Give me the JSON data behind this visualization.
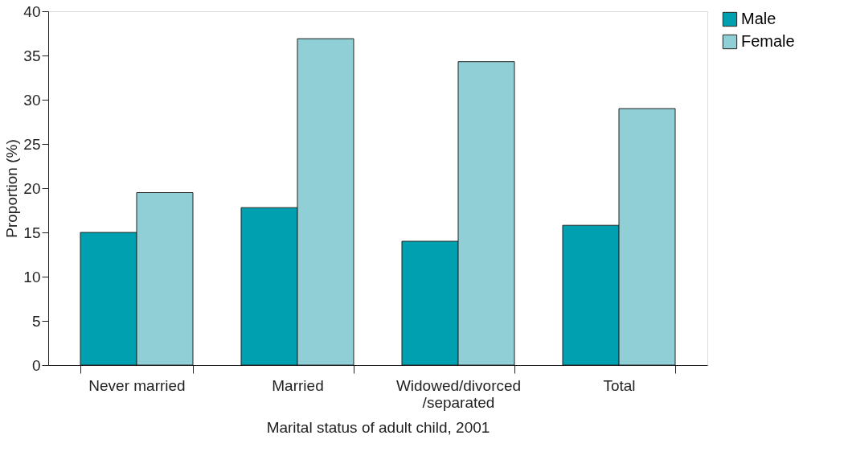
{
  "chart_data": {
    "type": "bar",
    "xlabel": "Marital status of adult child, 2001",
    "ylabel": "Proportion (%)",
    "categories": [
      "Never married",
      "Married",
      "Widowed/divorced\n/separated",
      "Total"
    ],
    "series": [
      {
        "name": "Male",
        "color": "#00a0b0",
        "values": [
          15.0,
          17.8,
          14.0,
          15.8
        ]
      },
      {
        "name": "Female",
        "color": "#90cfd6",
        "values": [
          19.5,
          36.9,
          34.3,
          29.0
        ]
      }
    ],
    "ylim": [
      0,
      40
    ],
    "yticks": [
      0,
      5,
      10,
      15,
      20,
      25,
      30,
      35,
      40
    ],
    "grid": false,
    "legend": "top right"
  }
}
